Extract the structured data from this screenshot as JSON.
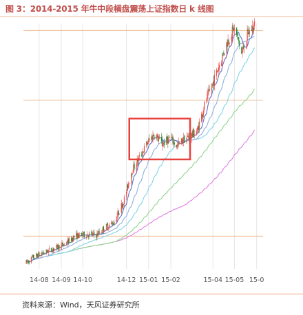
{
  "title": "图 3：2014-2015 年牛中段横盘震荡上证指数日 k 线图",
  "source": "资料来源：Wind，天风证券研究所",
  "colors": {
    "up": "#e8534f",
    "down": "#2e8b3a",
    "ma_short": "#5a6fc4",
    "ma_mid": "#8fb0e0",
    "ma_long": "#7fd4e8",
    "ma_xlong": "#8fd48f",
    "ma_xxlong": "#e07fe0",
    "hline": "#f0b48a",
    "box": "#e8403c",
    "grid": "#e6e6e6"
  },
  "chart_data": {
    "type": "candlestick",
    "title": "",
    "xlabel": "",
    "ylabel": "",
    "x_ticks": [
      "14-08",
      "14-09",
      "14-10",
      "14-12",
      "15-01",
      "15-02",
      "15-04",
      "15-05",
      "15-0"
    ],
    "x_tick_dates": [
      "2014-08-01",
      "2014-09-01",
      "2014-10-01",
      "2014-12-01",
      "2015-01-01",
      "2015-02-01",
      "2015-04-01",
      "2015-05-01",
      "2015-06-01"
    ],
    "x_range": [
      "2014-07-10",
      "2015-06-10"
    ],
    "ylim": [
      2000,
      4400
    ],
    "horizontal_lines": [
      2320,
      3650,
      4330
    ],
    "highlight_box": {
      "x": [
        "2014-12-05",
        "2015-02-28"
      ],
      "y": [
        3070,
        3470
      ]
    },
    "trend_points": [
      [
        "2014-07-14",
        2060
      ],
      [
        "2014-07-25",
        2120
      ],
      [
        "2014-08-15",
        2180
      ],
      [
        "2014-09-05",
        2240
      ],
      [
        "2014-09-20",
        2320
      ],
      [
        "2014-10-08",
        2340
      ],
      [
        "2014-10-20",
        2330
      ],
      [
        "2014-10-31",
        2400
      ],
      [
        "2014-11-14",
        2460
      ],
      [
        "2014-11-28",
        2680
      ],
      [
        "2014-12-08",
        2950
      ],
      [
        "2014-12-20",
        3100
      ],
      [
        "2014-12-31",
        3240
      ],
      [
        "2015-01-09",
        3320
      ],
      [
        "2015-01-20",
        3220
      ],
      [
        "2015-01-31",
        3280
      ],
      [
        "2015-02-10",
        3200
      ],
      [
        "2015-02-18",
        3260
      ],
      [
        "2015-02-28",
        3300
      ],
      [
        "2015-03-10",
        3350
      ],
      [
        "2015-03-20",
        3600
      ],
      [
        "2015-03-31",
        3800
      ],
      [
        "2015-04-10",
        4000
      ],
      [
        "2015-04-20",
        4200
      ],
      [
        "2015-04-30",
        4350
      ],
      [
        "2015-05-06",
        4250
      ],
      [
        "2015-05-11",
        4100
      ],
      [
        "2015-05-20",
        4300
      ],
      [
        "2015-05-31",
        4400
      ]
    ],
    "moving_averages": [
      {
        "color_key": "ma_short",
        "lag_days": 8,
        "smooth": 5
      },
      {
        "color_key": "ma_mid",
        "lag_days": 22,
        "smooth": 12
      },
      {
        "color_key": "ma_long",
        "lag_days": 45,
        "smooth": 22
      },
      {
        "color_key": "ma_xlong",
        "lag_days": 90,
        "smooth": 45
      },
      {
        "color_key": "ma_xxlong",
        "lag_days": 160,
        "smooth": 80
      }
    ],
    "legend": "none",
    "grid": true
  }
}
